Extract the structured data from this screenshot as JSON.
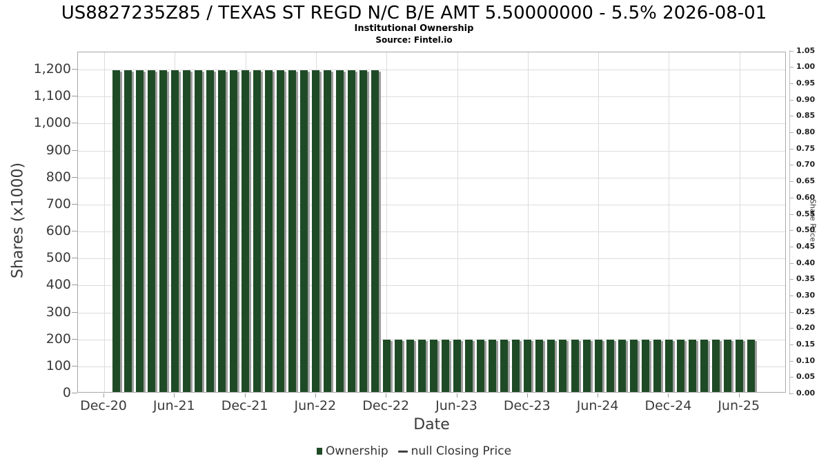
{
  "header": {
    "title": "US8827235Z85 / TEXAS ST REGD N/C B/E AMT 5.50000000 - 5.5% 2026-08-01",
    "subtitle": "Institutional Ownership",
    "source": "Source: Fintel.io"
  },
  "legend": {
    "ownership_label": "Ownership",
    "price_label": "null Closing Price"
  },
  "colors": {
    "bar": "#1e4b26",
    "bar_shadow": "#9c9c9c",
    "legend_dash": "#404040",
    "gridline": "#dcdcdc"
  },
  "chart_data": {
    "type": "bar",
    "title": "Institutional Ownership",
    "xlabel": "Date",
    "ylabel": "Shares (x1000)",
    "ylabel_right": "Share Price",
    "grid": true,
    "legend_position": "bottom",
    "ylim_left": [
      0,
      1265
    ],
    "ylim_right": [
      0.0,
      1.05
    ],
    "x": [
      "Jan-21",
      "Feb-21",
      "Mar-21",
      "Apr-21",
      "May-21",
      "Jun-21",
      "Jul-21",
      "Aug-21",
      "Sep-21",
      "Oct-21",
      "Nov-21",
      "Dec-21",
      "Jan-22",
      "Feb-22",
      "Mar-22",
      "Apr-22",
      "May-22",
      "Jun-22",
      "Jul-22",
      "Aug-22",
      "Sep-22",
      "Oct-22",
      "Nov-22",
      "Dec-22",
      "Jan-23",
      "Feb-23",
      "Mar-23",
      "Apr-23",
      "May-23",
      "Jun-23",
      "Jul-23",
      "Aug-23",
      "Sep-23",
      "Oct-23",
      "Nov-23",
      "Dec-23",
      "Jan-24",
      "Feb-24",
      "Mar-24",
      "Apr-24",
      "May-24",
      "Jun-24",
      "Jul-24",
      "Aug-24",
      "Sep-24",
      "Oct-24",
      "Nov-24",
      "Dec-24",
      "Jan-25",
      "Feb-25",
      "Mar-25",
      "Apr-25",
      "May-25",
      "Jun-25",
      "Jul-25"
    ],
    "series": [
      {
        "name": "Ownership",
        "type": "bar",
        "axis": "left",
        "values": [
          1197,
          1197,
          1197,
          1197,
          1197,
          1197,
          1197,
          1197,
          1197,
          1197,
          1197,
          1197,
          1197,
          1197,
          1197,
          1197,
          1197,
          1197,
          1197,
          1197,
          1197,
          1197,
          1197,
          199,
          199,
          199,
          199,
          199,
          199,
          199,
          199,
          199,
          199,
          199,
          199,
          199,
          199,
          199,
          199,
          199,
          199,
          199,
          199,
          199,
          199,
          199,
          199,
          199,
          199,
          199,
          199,
          199,
          199,
          199,
          199
        ]
      },
      {
        "name": "null Closing Price",
        "type": "line",
        "axis": "right",
        "values": []
      }
    ],
    "axes": {
      "y_left_ticks": [
        {
          "label": "0",
          "value": 0
        },
        {
          "label": "100",
          "value": 100
        },
        {
          "label": "200",
          "value": 200
        },
        {
          "label": "300",
          "value": 300
        },
        {
          "label": "400",
          "value": 400
        },
        {
          "label": "500",
          "value": 500
        },
        {
          "label": "600",
          "value": 600
        },
        {
          "label": "700",
          "value": 700
        },
        {
          "label": "800",
          "value": 800
        },
        {
          "label": "900",
          "value": 900
        },
        {
          "label": "1,000",
          "value": 1000
        },
        {
          "label": "1,100",
          "value": 1100
        },
        {
          "label": "1,200",
          "value": 1200
        }
      ],
      "y_right_ticks": [
        "0.00",
        "0.05",
        "0.10",
        "0.15",
        "0.20",
        "0.25",
        "0.30",
        "0.35",
        "0.40",
        "0.45",
        "0.50",
        "0.55",
        "0.60",
        "0.65",
        "0.70",
        "0.75",
        "0.80",
        "0.85",
        "0.90",
        "0.95",
        "1.00",
        "1.05"
      ],
      "x_ticks": [
        {
          "label": "Dec-20",
          "month_index": -1
        },
        {
          "label": "Jun-21",
          "month_index": 5
        },
        {
          "label": "Dec-21",
          "month_index": 11
        },
        {
          "label": "Jun-22",
          "month_index": 17
        },
        {
          "label": "Dec-22",
          "month_index": 23
        },
        {
          "label": "Jun-23",
          "month_index": 29
        },
        {
          "label": "Dec-23",
          "month_index": 35
        },
        {
          "label": "Jun-24",
          "month_index": 41
        },
        {
          "label": "Dec-24",
          "month_index": 47
        },
        {
          "label": "Jun-25",
          "month_index": 53
        }
      ]
    }
  }
}
